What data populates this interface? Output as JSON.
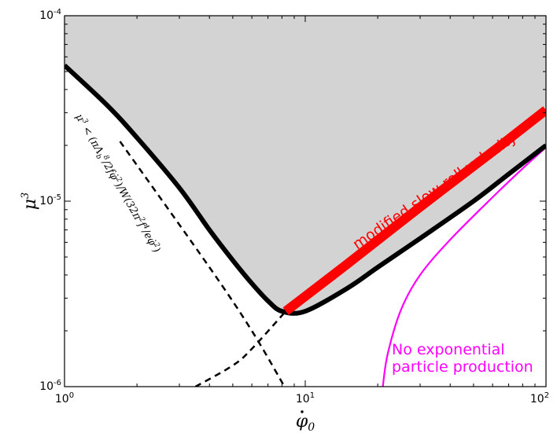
{
  "chart_data": {
    "type": "line",
    "xscale": "log",
    "yscale": "log",
    "xlim": [
      1,
      100
    ],
    "ylim": [
      1e-06,
      0.0001
    ],
    "grid": false,
    "xlabel": "φ̇₀",
    "ylabel": "μ³",
    "xticks": [
      {
        "value": 1,
        "label": "10^0"
      },
      {
        "value": 10,
        "label": "10^1"
      },
      {
        "value": 100,
        "label": "10^2"
      }
    ],
    "yticks": [
      {
        "value": 1e-06,
        "label": "10^-6"
      },
      {
        "value": 1e-05,
        "label": "10^-5"
      },
      {
        "value": 0.0001,
        "label": "10^-4"
      }
    ],
    "series": [
      {
        "key": "bound",
        "style": "solid-thick",
        "color": "#000000",
        "x": [
          1,
          1.5,
          2,
          3,
          4,
          5,
          6,
          7,
          8,
          10,
          15,
          20,
          30,
          50,
          70,
          100
        ],
        "y": [
          5.4e-05,
          3.3e-05,
          2.2e-05,
          1.18e-05,
          7e-06,
          4.8e-06,
          3.6e-06,
          2.9e-06,
          2.55e-06,
          2.55e-06,
          3.4e-06,
          4.4e-06,
          6.3e-06,
          1e-05,
          1.4e-05,
          2e-05
        ]
      },
      {
        "key": "asymptote-left",
        "style": "dashed",
        "color": "#000000",
        "x": [
          1.7,
          4,
          6,
          8.2
        ],
        "y": [
          2.1e-05,
          4.4e-06,
          2e-06,
          1e-06
        ]
      },
      {
        "key": "asymptote-right",
        "style": "dashed",
        "color": "#000000",
        "x": [
          3.5,
          5,
          6,
          8.3
        ],
        "y": [
          1e-06,
          1.3e-06,
          1.6e-06,
          2.55e-06
        ]
      },
      {
        "key": "slow-roll",
        "name": "modified slow roll velocity",
        "style": "solid-heavy",
        "color": "#ff0000",
        "x": [
          8.3,
          15,
          30,
          60,
          100
        ],
        "y": [
          2.55e-06,
          4.6e-06,
          9.3e-06,
          1.85e-05,
          3.1e-05
        ]
      },
      {
        "key": "no-production",
        "name": "No exponential particle production",
        "style": "solid",
        "color": "#ff00ff",
        "x": [
          21,
          22,
          25,
          30,
          40,
          60,
          80,
          100
        ],
        "y": [
          1e-06,
          1.5e-06,
          2.6e-06,
          4e-06,
          6.2e-06,
          1.05e-05,
          1.5e-05,
          1.95e-05
        ]
      }
    ],
    "shaded_region": {
      "key": "excluded",
      "color": "#d3d3d3",
      "bounded_below_by": "bound"
    },
    "annotations": [
      {
        "key": "slow-roll-label",
        "text": "modified slow roll velocity",
        "color": "#ff0000"
      },
      {
        "key": "no-production-line1",
        "text": "No exponential",
        "color": "#ff00ff"
      },
      {
        "key": "no-production-line2",
        "text": "particle production",
        "color": "#ff00ff"
      },
      {
        "key": "bound-label",
        "text": "μ³ < (πΛ_b⁸/2fφ̇²)/W(32π²f⁴/eφ̇²)",
        "color": "#000000"
      }
    ]
  }
}
